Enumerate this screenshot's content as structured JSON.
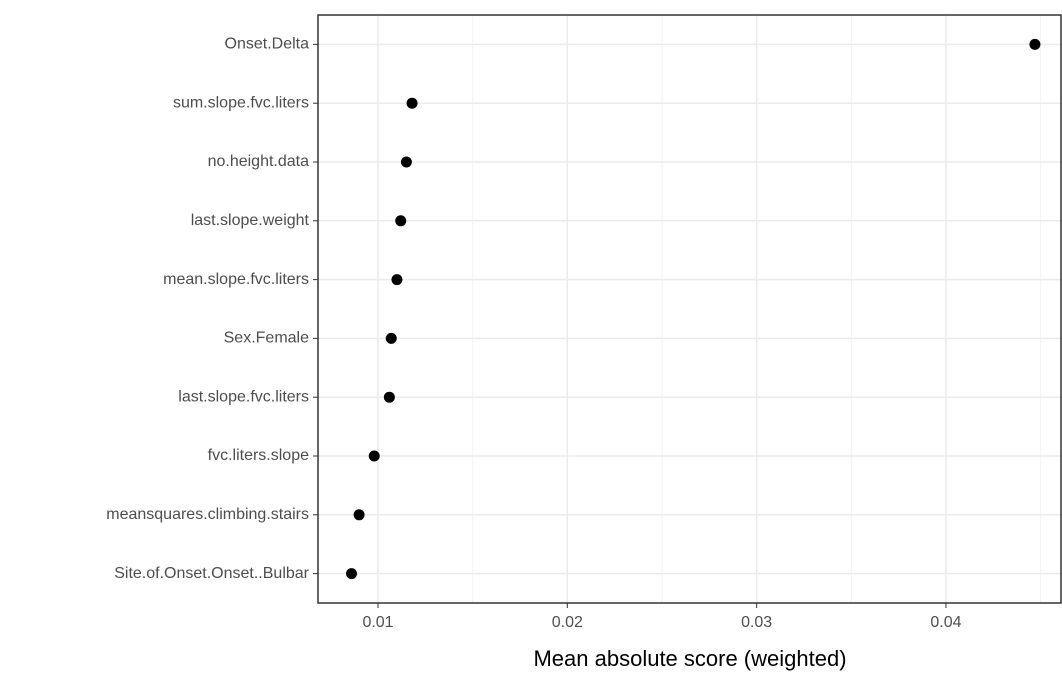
{
  "chart_data": {
    "type": "dot",
    "x_label": "Mean absolute score (weighted)",
    "categories": [
      "Onset.Delta",
      "sum.slope.fvc.liters",
      "no.height.data",
      "last.slope.weight",
      "mean.slope.fvc.liters",
      "Sex.Female",
      "last.slope.fvc.liters",
      "fvc.liters.slope",
      "meansquares.climbing.stairs",
      "Site.of.Onset.Onset..Bulbar"
    ],
    "values": [
      0.0447,
      0.0118,
      0.0115,
      0.0112,
      0.011,
      0.0107,
      0.0106,
      0.0098,
      0.009,
      0.0086
    ],
    "color": "#000000",
    "xlim": [
      0.00683,
      0.04613
    ],
    "xticks": [
      0.01,
      0.02,
      0.03,
      0.04
    ],
    "grid": true
  }
}
